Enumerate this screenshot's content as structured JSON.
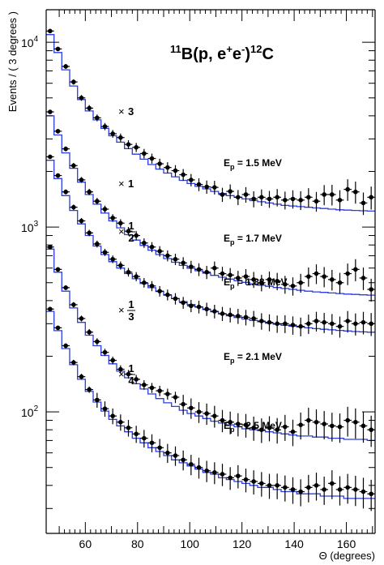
{
  "chart_data": {
    "type": "scatter",
    "title": "¹¹B(p, e⁺e⁻)¹²C",
    "xlabel": "Θ (degrees)",
    "ylabel": "Events / ( 3 degrees )",
    "xlim": [
      45,
      171
    ],
    "ylim": [
      22,
      15000
    ],
    "yscale": "log",
    "x_ticks": [
      60,
      80,
      100,
      120,
      140,
      160
    ],
    "y_ticks": [
      {
        "value": 100,
        "base": "10",
        "exp": "2"
      },
      {
        "value": 1000,
        "base": "10",
        "exp": "3"
      },
      {
        "value": 10000,
        "base": "10",
        "exp": "4"
      }
    ],
    "x": [
      46.5,
      49.5,
      52.5,
      55.5,
      58.5,
      61.5,
      64.5,
      67.5,
      70.5,
      73.5,
      76.5,
      79.5,
      82.5,
      85.5,
      88.5,
      91.5,
      94.5,
      97.5,
      100.5,
      103.5,
      106.5,
      109.5,
      112.5,
      115.5,
      118.5,
      121.5,
      124.5,
      127.5,
      130.5,
      133.5,
      136.5,
      139.5,
      142.5,
      145.5,
      148.5,
      151.5,
      154.5,
      157.5,
      160.5,
      163.5,
      166.5,
      169.5
    ],
    "series": [
      {
        "label": "E_p = 1.5 MeV",
        "label_main": "E",
        "label_sub": "p",
        "label_tail": " = 1.5 MeV",
        "multiplier": "3",
        "data": [
          11500,
          9200,
          7400,
          6100,
          5000,
          4400,
          3900,
          3500,
          3200,
          3050,
          2800,
          2700,
          2500,
          2350,
          2200,
          2100,
          2020,
          1920,
          1800,
          1700,
          1650,
          1640,
          1500,
          1560,
          1450,
          1500,
          1420,
          1450,
          1420,
          1450,
          1400,
          1420,
          1400,
          1450,
          1380,
          1500,
          1500,
          1400,
          1600,
          1550,
          1350,
          1450
        ],
        "model": [
          11000,
          8800,
          7100,
          5800,
          4900,
          4250,
          3800,
          3420,
          3120,
          2880,
          2660,
          2480,
          2330,
          2180,
          2060,
          1960,
          1870,
          1790,
          1720,
          1660,
          1610,
          1560,
          1520,
          1480,
          1450,
          1420,
          1390,
          1370,
          1350,
          1330,
          1310,
          1300,
          1290,
          1280,
          1270,
          1260,
          1250,
          1240,
          1235,
          1230,
          1225,
          1220
        ]
      },
      {
        "label": "E_p = 1.7 MeV",
        "label_main": "E",
        "label_sub": "p",
        "label_tail": " = 1.7 MeV",
        "multiplier": "1",
        "data": [
          4200,
          3300,
          2650,
          2150,
          1800,
          1550,
          1380,
          1250,
          1120,
          1050,
          950,
          900,
          820,
          780,
          740,
          700,
          670,
          640,
          610,
          590,
          570,
          600,
          560,
          550,
          530,
          540,
          520,
          500,
          520,
          510,
          490,
          480,
          500,
          540,
          560,
          540,
          520,
          500,
          560,
          590,
          530,
          460
        ],
        "model": [
          4000,
          3150,
          2520,
          2080,
          1750,
          1500,
          1330,
          1190,
          1080,
          990,
          910,
          850,
          795,
          750,
          710,
          675,
          645,
          620,
          598,
          580,
          563,
          548,
          535,
          523,
          512,
          502,
          493,
          485,
          478,
          471,
          465,
          460,
          455,
          450,
          446,
          443,
          440,
          437,
          434,
          432,
          430,
          428
        ]
      },
      {
        "label": "E_p = 1.88 MeV",
        "label_main": "E",
        "label_sub": "p",
        "label_tail": " = 1.88 MeV",
        "multiplier": "1/2",
        "data": [
          2400,
          1900,
          1550,
          1280,
          1080,
          930,
          810,
          730,
          670,
          620,
          570,
          540,
          500,
          480,
          450,
          430,
          410,
          390,
          375,
          370,
          360,
          350,
          340,
          335,
          330,
          325,
          320,
          310,
          305,
          300,
          300,
          295,
          290,
          300,
          310,
          305,
          300,
          290,
          310,
          300,
          305,
          300
        ],
        "model": [
          2300,
          1830,
          1480,
          1230,
          1040,
          900,
          790,
          710,
          650,
          600,
          560,
          525,
          495,
          470,
          448,
          428,
          410,
          395,
          381,
          369,
          358,
          348,
          339,
          331,
          324,
          318,
          312,
          307,
          302,
          298,
          294,
          291,
          288,
          285,
          282,
          280,
          278,
          276,
          274,
          272,
          271,
          270
        ]
      },
      {
        "label": "E_p = 2.1 MeV",
        "label_main": "E",
        "label_sub": "p",
        "label_tail": " = 2.1 MeV",
        "multiplier": "1/3",
        "data": [
          780,
          590,
          470,
          380,
          320,
          270,
          240,
          210,
          190,
          170,
          160,
          150,
          140,
          135,
          130,
          125,
          120,
          110,
          105,
          100,
          98,
          95,
          90,
          88,
          86,
          85,
          82,
          80,
          82,
          80,
          83,
          78,
          85,
          90,
          88,
          86,
          84,
          83,
          90,
          88,
          84,
          80
        ],
        "model": [
          760,
          570,
          450,
          365,
          305,
          260,
          228,
          202,
          182,
          166,
          153,
          142,
          133,
          125,
          118,
          112,
          107,
          102,
          98,
          95,
          92,
          89,
          87,
          85,
          83,
          81,
          80,
          79,
          78,
          77,
          76,
          75,
          74,
          74,
          73,
          73,
          72,
          72,
          71,
          71,
          71,
          70
        ]
      },
      {
        "label": "E_p = 2.5 MeV",
        "label_main": "E",
        "label_sub": "p",
        "label_tail": " = 2.5 MeV",
        "multiplier": "1/4",
        "data": [
          360,
          285,
          228,
          185,
          155,
          132,
          116,
          104,
          95,
          88,
          82,
          76,
          72,
          68,
          64,
          60,
          58,
          55,
          52,
          50,
          48,
          47,
          46,
          44,
          45,
          43,
          42,
          41,
          40,
          40,
          39,
          38,
          37,
          39,
          40,
          38,
          41,
          38,
          39,
          38,
          37,
          36
        ],
        "model": [
          350,
          275,
          220,
          180,
          150,
          129,
          113,
          101,
          91,
          84,
          78,
          72,
          68,
          64,
          61,
          58,
          55,
          53,
          51,
          49,
          47,
          46,
          44,
          43,
          42,
          41,
          40,
          39,
          39,
          38,
          37,
          37,
          36,
          36,
          36,
          35,
          35,
          35,
          34,
          34,
          34,
          34
        ]
      }
    ],
    "colors": {
      "data": "#000000",
      "model": "#2a3de0"
    },
    "grid": false,
    "legend": "none"
  },
  "text": {
    "title_base": "B(p, e",
    "title_iso": "11",
    "title_plus": "+",
    "title_mid": "e",
    "title_minus": "-",
    "title_close": ")",
    "title_iso2": "12",
    "title_end": "C",
    "times": "×"
  }
}
